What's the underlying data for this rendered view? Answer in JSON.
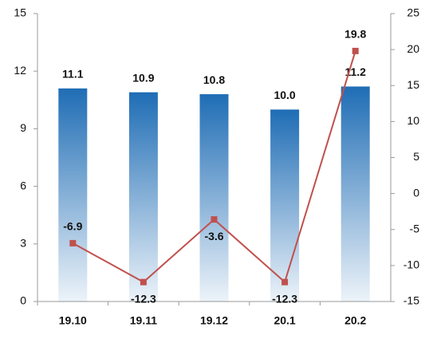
{
  "chart_data": {
    "type": "bar-line",
    "categories": [
      "19.10",
      "19.11",
      "19.12",
      "20.1",
      "20.2"
    ],
    "series": [
      {
        "type": "bar",
        "color": "#1f6db5",
        "values": [
          11.1,
          10.9,
          10.8,
          10.0,
          11.2
        ],
        "value_labels": [
          "11.1",
          "10.9",
          "10.8",
          "10.0",
          "11.2"
        ]
      },
      {
        "type": "line",
        "axis": "y2",
        "color": "#c0504d",
        "values": [
          -6.9,
          -12.3,
          -3.6,
          -12.3,
          19.8
        ]
      }
    ],
    "ylim": [
      0,
      15
    ],
    "yticks": [
      0,
      3,
      6,
      9,
      12,
      15
    ],
    "y2lim": [
      -15,
      25
    ],
    "y2ticks": [
      -15,
      -10,
      -5,
      0,
      5,
      10,
      15,
      20,
      25
    ],
    "grid": false
  }
}
